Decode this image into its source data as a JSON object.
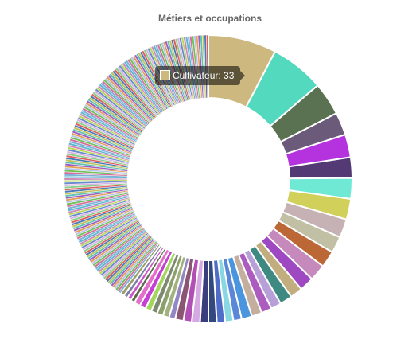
{
  "chart_data": {
    "type": "pie",
    "title": "Métiers et occupations",
    "slices": [
      {
        "label": "Cultivateur",
        "value": 33,
        "color": "#CDB87F"
      },
      {
        "value": 26,
        "color": "#53D9BD"
      },
      {
        "value": 16,
        "color": "#5B7252"
      },
      {
        "value": 11,
        "color": "#6B5A7A"
      },
      {
        "value": 11,
        "color": "#B533DE"
      },
      {
        "value": 10,
        "color": "#533A74"
      },
      {
        "value": 10,
        "color": "#6FE8D4"
      },
      {
        "value": 10,
        "color": "#D1D05A"
      },
      {
        "value": 9,
        "color": "#C6B2B4"
      },
      {
        "value": 8,
        "color": "#C2C0A4"
      },
      {
        "value": 8,
        "color": "#BC6836"
      },
      {
        "value": 8,
        "color": "#C589BB"
      },
      {
        "value": 7,
        "color": "#9E48C2"
      },
      {
        "value": 6,
        "color": "#C2AD7F"
      },
      {
        "value": 6,
        "color": "#3E8A82"
      },
      {
        "value": 5,
        "color": "#B79FD7"
      },
      {
        "value": 5,
        "color": "#AC5BBE"
      },
      {
        "value": 5,
        "color": "#C4AF9F"
      },
      {
        "value": 5,
        "color": "#4B94DE"
      },
      {
        "value": 4,
        "color": "#5A87D7"
      },
      {
        "value": 4,
        "color": "#89D7E3"
      },
      {
        "value": 4,
        "color": "#4F6CC8"
      },
      {
        "value": 4,
        "color": "#33487E"
      },
      {
        "value": 4,
        "color": "#3A3E7C"
      },
      {
        "value": 4,
        "color": "#D7A9E2"
      },
      {
        "value": 4,
        "color": "#B24FB4"
      },
      {
        "value": 4,
        "color": "#8A5674"
      },
      {
        "value": 3,
        "color": "#9386C4"
      },
      {
        "value": 3,
        "color": "#A1B27F"
      },
      {
        "value": 3,
        "color": "#8CA06C"
      },
      {
        "value": 3,
        "color": "#7D8A71"
      },
      {
        "value": 3,
        "color": "#A2D65C"
      },
      {
        "value": 3,
        "color": "#C63FD4"
      },
      {
        "value": 3,
        "color": "#E46FCB"
      },
      {
        "value": 2,
        "color": "#5C6A4A"
      },
      {
        "value": 2,
        "color": "#C955C8"
      },
      {
        "value": 2,
        "color": "#7E7DA8"
      },
      {
        "value": 2,
        "color": "#9A9E68"
      }
    ],
    "small_slices": {
      "count": 170,
      "value": 1,
      "colors": [
        "#7FB0D8",
        "#D66F9C",
        "#6FC25A",
        "#B7C4E8",
        "#E2A05A",
        "#9F5FC2",
        "#5FC2B4",
        "#C2C25F",
        "#4A7AB8",
        "#E06060",
        "#8AD08A",
        "#D8B4E2",
        "#6A8AD0",
        "#B8D85A",
        "#D08AB8",
        "#5AB8D0"
      ]
    },
    "tooltip": {
      "label": "Cultivateur",
      "value": 33,
      "color": "#CDB87F"
    }
  },
  "tooltip_text": "Cultivateur: 33"
}
